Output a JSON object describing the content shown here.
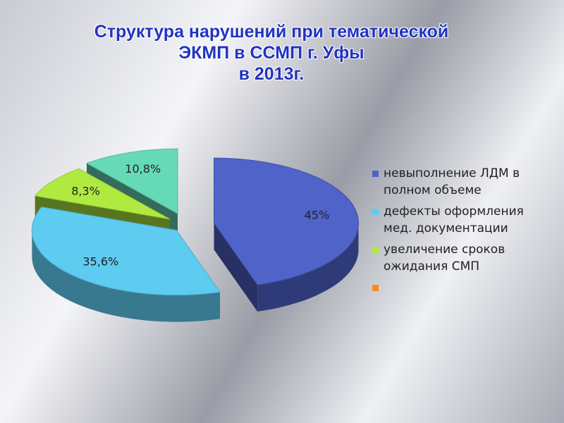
{
  "chart_data": {
    "type": "pie3d",
    "title": [
      "Структура нарушений при тематической",
      "ЭКМП в ССМП г. Уфы",
      "в 2013г."
    ],
    "categories": [
      "невыполнение ЛДМ в полном объеме",
      "дефекты оформления мед. документации",
      "увеличение сроков ожидания СМП",
      null
    ],
    "values": [
      45,
      35.6,
      8.3,
      10.8
    ],
    "value_labels": [
      "45%",
      "35,6%",
      "8,3%",
      "10,8%"
    ],
    "colors": [
      "#4f63c8",
      "#5ecbf0",
      "#b0ea40",
      "#66d9b6"
    ],
    "legend_colors": [
      "#4f63c8",
      "#5ecbf0",
      "#b0ea40",
      "#f58a1f"
    ],
    "legend": "right"
  }
}
